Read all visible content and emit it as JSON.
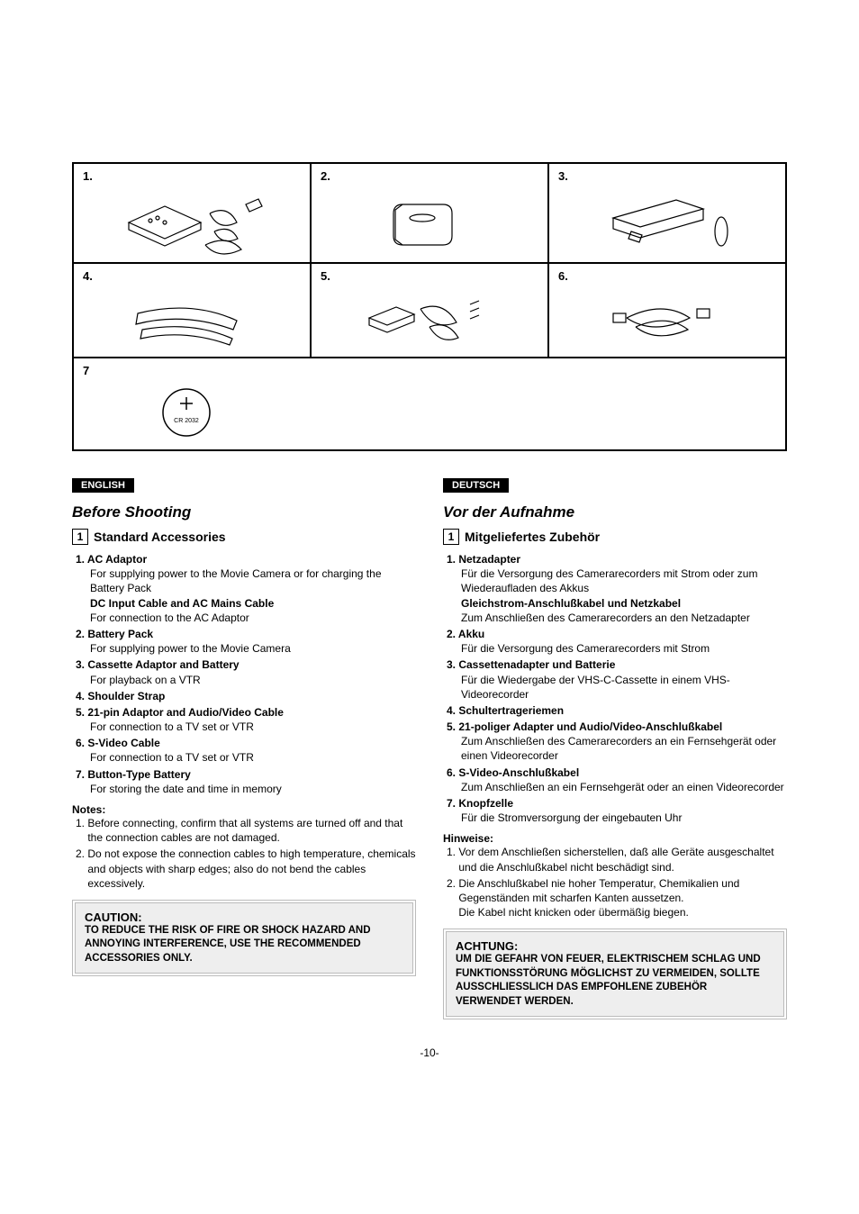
{
  "figures": {
    "cells": [
      "1.",
      "2.",
      "3.",
      "4.",
      "5.",
      "6.",
      "7"
    ],
    "battery_label": "CR 2032"
  },
  "english": {
    "lang": "ENGLISH",
    "title": "Before Shooting",
    "boxnum": "1",
    "subtitle": "Standard Accessories",
    "items": [
      {
        "n": "1.",
        "label": "AC Adaptor",
        "desc": "For supplying power to the Movie Camera or for charging the Battery Pack",
        "bold": "DC Input Cable and AC Mains Cable",
        "desc2": "For connection to the AC Adaptor"
      },
      {
        "n": "2.",
        "label": "Battery Pack",
        "desc": "For supplying power to the Movie Camera"
      },
      {
        "n": "3.",
        "label": "Cassette Adaptor and Battery",
        "desc": "For playback on a VTR"
      },
      {
        "n": "4.",
        "label": "Shoulder Strap"
      },
      {
        "n": "5.",
        "label": "21-pin Adaptor and Audio/Video Cable",
        "desc": "For connection to a TV set or VTR"
      },
      {
        "n": "6.",
        "label": "S-Video Cable",
        "desc": "For connection to a TV set or VTR"
      },
      {
        "n": "7.",
        "label": "Button-Type Battery",
        "desc": "For storing the date and time in memory"
      }
    ],
    "notes_head": "Notes:",
    "notes": [
      {
        "n": "1.",
        "t": "Before connecting, confirm that all systems are turned off and that the connection cables are not damaged."
      },
      {
        "n": "2.",
        "t": "Do not expose the connection cables to high temperature, chemicals and objects with sharp edges; also do not bend the cables excessively."
      }
    ],
    "caution_title": "CAUTION:",
    "caution_body": "TO REDUCE THE RISK OF FIRE OR SHOCK HAZARD AND ANNOYING INTERFERENCE, USE THE RECOMMENDED ACCESSORIES ONLY."
  },
  "deutsch": {
    "lang": "DEUTSCH",
    "title": "Vor der Aufnahme",
    "boxnum": "1",
    "subtitle": "Mitgeliefertes Zubehör",
    "items": [
      {
        "n": "1.",
        "label": "Netzadapter",
        "desc": "Für die Versorgung des Camerarecorders mit Strom oder zum Wiederaufladen des Akkus",
        "bold": "Gleichstrom-Anschlußkabel und Netzkabel",
        "desc2": "Zum Anschließen des Camerarecorders an den Netzadapter"
      },
      {
        "n": "2.",
        "label": "Akku",
        "desc": "Für die Versorgung des Camerarecorders mit Strom"
      },
      {
        "n": "3.",
        "label": "Cassettenadapter und Batterie",
        "desc": "Für die Wiedergabe der VHS-C-Cassette in einem VHS-Videorecorder"
      },
      {
        "n": "4.",
        "label": "Schultertrageriemen"
      },
      {
        "n": "5.",
        "label": "21-poliger Adapter und Audio/Video-Anschlußkabel",
        "desc": "Zum Anschließen des Camerarecorders an ein Fernsehgerät oder einen Videorecorder"
      },
      {
        "n": "6.",
        "label": "S-Video-Anschlußkabel",
        "desc": "Zum Anschließen an ein Fernsehgerät oder an einen Videorecorder"
      },
      {
        "n": "7.",
        "label": "Knopfzelle",
        "desc": "Für die Stromversorgung der eingebauten Uhr"
      }
    ],
    "notes_head": "Hinweise:",
    "notes": [
      {
        "n": "1.",
        "t": "Vor dem Anschließen sicherstellen, daß alle Geräte ausgeschaltet und die Anschlußkabel nicht beschädigt sind."
      },
      {
        "n": "2.",
        "t": "Die Anschlußkabel nie hoher Temperatur, Chemikalien und Gegenständen mit scharfen Kanten aussetzen.\nDie Kabel nicht knicken oder übermäßig biegen."
      }
    ],
    "caution_title": "ACHTUNG:",
    "caution_body": "UM DIE GEFAHR VON FEUER, ELEKTRISCHEM SCHLAG UND FUNKTIONSSTÖRUNG MÖGLICHST ZU VERMEIDEN, SOLLTE AUSSCHLIESSLICH DAS EMPFOHLENE ZUBEHÖR VERWENDET WERDEN."
  },
  "pagenum": "-10-"
}
